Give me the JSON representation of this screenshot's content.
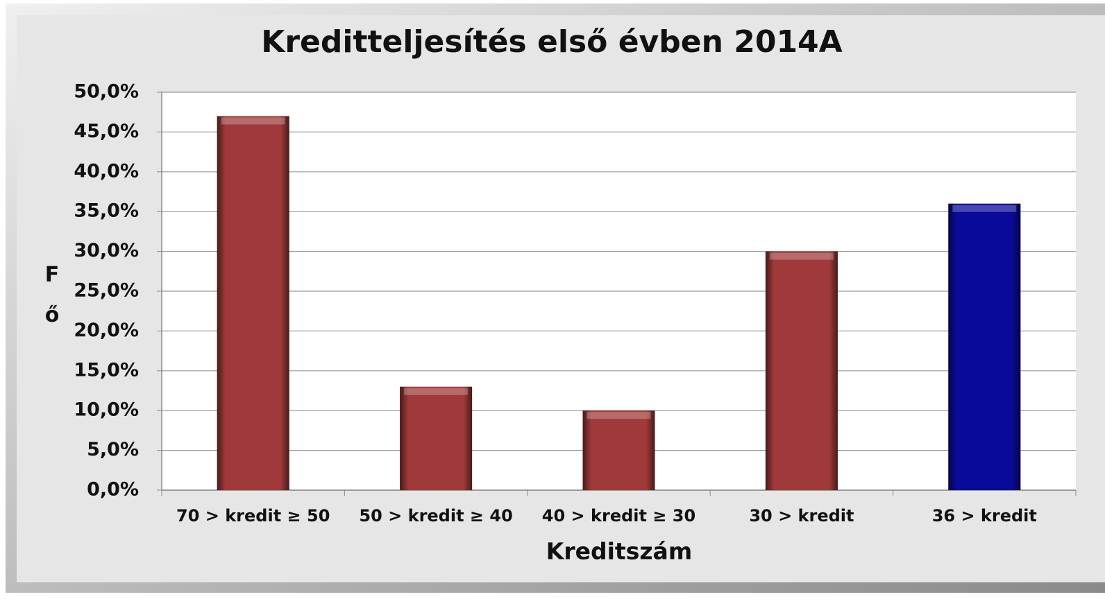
{
  "chart_data": {
    "type": "bar",
    "title": "Kreditteljesítés első évben 2014A",
    "xlabel": "Kreditszám",
    "ylabel": "Fő",
    "categories": [
      "70 > kredit ≥ 50",
      "50 > kredit ≥ 40",
      "40 > kredit ≥ 30",
      "30 > kredit",
      "36 > kredit"
    ],
    "values": [
      47,
      13,
      10,
      30,
      36
    ],
    "colors": [
      "#a03a3a",
      "#a03a3a",
      "#a03a3a",
      "#a03a3a",
      "#0a0a9a"
    ],
    "ylim": [
      0,
      50
    ],
    "yticks": [
      {
        "value": 0,
        "label": "0,0%"
      },
      {
        "value": 5,
        "label": "5,0%"
      },
      {
        "value": 10,
        "label": "10,0%"
      },
      {
        "value": 15,
        "label": "15,0%"
      },
      {
        "value": 20,
        "label": "20,0%"
      },
      {
        "value": 25,
        "label": "25,0%"
      },
      {
        "value": 30,
        "label": "30,0%"
      },
      {
        "value": 35,
        "label": "35,0%"
      },
      {
        "value": 40,
        "label": "40,0%"
      },
      {
        "value": 45,
        "label": "45,0%"
      },
      {
        "value": 50,
        "label": "50,0%"
      }
    ],
    "grid": true
  }
}
